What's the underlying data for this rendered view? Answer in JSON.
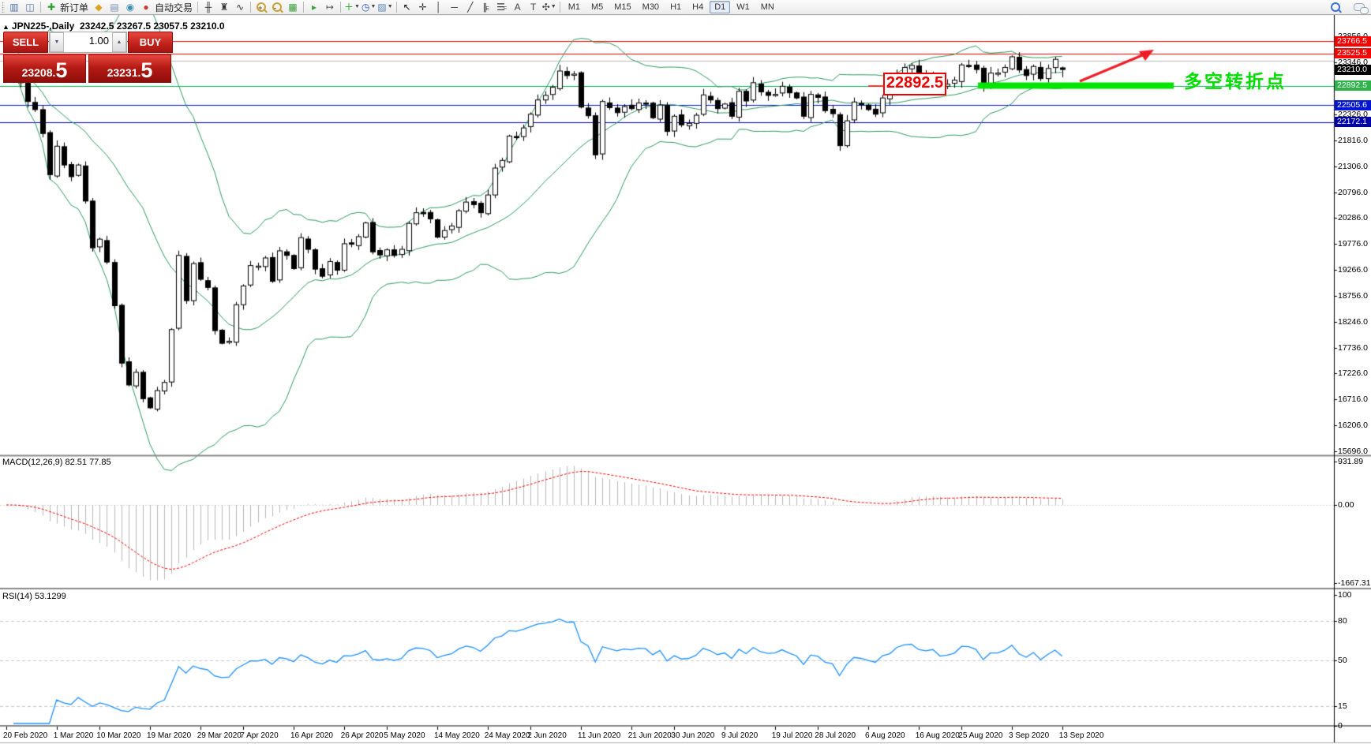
{
  "toolbar": {
    "icons_left": [
      {
        "name": "market-watch-icon",
        "glyph": "▥",
        "color": "#4f71a8"
      },
      {
        "name": "data-window-icon",
        "glyph": "◫",
        "color": "#4f71a8"
      },
      {
        "name": "separator"
      },
      {
        "name": "new-order-icon",
        "glyph": "✚",
        "color": "#2ca02c",
        "label": "新订单"
      },
      {
        "name": "expert-advisors-icon",
        "glyph": "◆",
        "color": "#d9a520"
      },
      {
        "name": "terminal-icon",
        "glyph": "▤",
        "color": "#7c8fb5"
      },
      {
        "name": "strategy-tester-icon",
        "glyph": "◉",
        "color": "#3a8fb5"
      },
      {
        "name": "autotrading-icon",
        "glyph": "●",
        "color": "#cc3b30",
        "label": "自动交易"
      },
      {
        "name": "separator"
      },
      {
        "name": "bar-chart-icon",
        "glyph": "╫",
        "color": "#333"
      },
      {
        "name": "candlestick-chart-icon",
        "glyph": "♜",
        "color": "#333"
      },
      {
        "name": "line-chart-icon",
        "glyph": "∿",
        "color": "#333"
      },
      {
        "name": "separator"
      },
      {
        "name": "zoom-in-icon",
        "special": "mag",
        "pm": "+"
      },
      {
        "name": "zoom-out-icon",
        "special": "mag",
        "pm": "-"
      },
      {
        "name": "tile-windows-icon",
        "glyph": "▦",
        "color": "#3ba03b"
      },
      {
        "name": "separator"
      },
      {
        "name": "auto-scroll-icon",
        "glyph": "▸",
        "color": "#3ba03b"
      },
      {
        "name": "chart-shift-icon",
        "glyph": "↦",
        "color": "#555"
      },
      {
        "name": "separator"
      },
      {
        "name": "indicators-icon",
        "glyph": "＋",
        "color": "#18a018",
        "dropdown": true
      },
      {
        "name": "periods-icon",
        "glyph": "◷",
        "color": "#2255cc",
        "dropdown": true
      },
      {
        "name": "templates-icon",
        "glyph": "▨",
        "color": "#5588bb",
        "dropdown": true
      },
      {
        "name": "separator"
      },
      {
        "name": "cursor-icon",
        "glyph": "↖",
        "color": "#111"
      },
      {
        "name": "crosshair-icon",
        "glyph": "✛",
        "color": "#333"
      },
      {
        "name": "vertical-line-icon",
        "glyph": "│",
        "color": "#333"
      },
      {
        "name": "horizontal-line-icon",
        "glyph": "─",
        "color": "#333"
      },
      {
        "name": "trendline-icon",
        "glyph": "╱",
        "color": "#333"
      },
      {
        "name": "equidistant-channel-icon",
        "glyph": "∥",
        "color": "#333",
        "sub": "E"
      },
      {
        "name": "fibonacci-icon",
        "glyph": "☰",
        "color": "#333",
        "sub": "F"
      },
      {
        "name": "text-icon",
        "glyph": "A",
        "color": "#444"
      },
      {
        "name": "text-label-icon",
        "glyph": "T",
        "color": "#444"
      },
      {
        "name": "arrows-icon",
        "glyph": "✣",
        "color": "#444",
        "dropdown": true
      },
      {
        "name": "separator"
      }
    ],
    "timeframes": [
      "M1",
      "M5",
      "M15",
      "M30",
      "H1",
      "H4",
      "D1",
      "W1",
      "MN"
    ],
    "active_timeframe": "D1",
    "icons_right": [
      {
        "name": "search-icon",
        "special": "mag-blue"
      },
      {
        "name": "chat-icon",
        "special": "chat"
      }
    ]
  },
  "chart": {
    "title_marker": "▲",
    "title": "JPN225-,Daily",
    "title_ohlc": "23242.5 23267.5 23057.5 23210.0",
    "one_click": {
      "sell_label": "SELL",
      "buy_label": "BUY",
      "volume": "1.00",
      "spin_down": "▼",
      "spin_up": "▲",
      "sell_price_main": "23208",
      "sell_price_frac": "5",
      "buy_price_main": "23231",
      "buy_price_frac": "5"
    },
    "y_ticks": [
      "23856.0",
      "23346.0",
      "22836.0",
      "22326.0",
      "21816.0",
      "21306.0",
      "20796.0",
      "20286.0",
      "19776.0",
      "19266.0",
      "18756.0",
      "18246.0",
      "17736.0",
      "17226.0",
      "16716.0",
      "16206.0",
      "15696.0"
    ],
    "price_labels": [
      {
        "text": "23766.5",
        "bg": "#f80000",
        "price": 23766.5
      },
      {
        "text": "23525.5",
        "bg": "#f80000",
        "price": 23525.5
      },
      {
        "text": "23210.0",
        "bg": "#000000",
        "price": 23210.0
      },
      {
        "text": "22892.5",
        "bg": "#2eb34a",
        "price": 22892.5
      },
      {
        "text": "22505.6",
        "bg": "#0014d2",
        "price": 22505.6
      },
      {
        "text": "22172.1",
        "bg": "#0000a8",
        "price": 22172.1
      }
    ],
    "levels": [
      {
        "price": 23766.5,
        "color": "#f80000"
      },
      {
        "price": 23525.5,
        "color": "#f80000"
      },
      {
        "price": 23375.0,
        "color": "#bcbcbc"
      },
      {
        "price": 22892.5,
        "color": "#00b050"
      },
      {
        "price": 22505.6,
        "color": "#0014d2"
      },
      {
        "price": 22172.1,
        "color": "#0000a8"
      }
    ],
    "annotations": {
      "price_box_text": "22892.5",
      "turning_point_text": "多空转折点"
    },
    "date_labels": [
      {
        "label": "20 Feb 2020",
        "i": 0
      },
      {
        "label": "1 Mar 2020",
        "i": 7
      },
      {
        "label": "10 Mar 2020",
        "i": 13
      },
      {
        "label": "19 Mar 2020",
        "i": 20
      },
      {
        "label": "29 Mar 2020",
        "i": 27
      },
      {
        "label": "7 Apr 2020",
        "i": 33
      },
      {
        "label": "16 Apr 2020",
        "i": 40
      },
      {
        "label": "26 Apr 2020",
        "i": 47
      },
      {
        "label": "5 May 2020",
        "i": 53
      },
      {
        "label": "14 May 2020",
        "i": 60
      },
      {
        "label": "24 May 2020",
        "i": 67
      },
      {
        "label": "2 Jun 2020",
        "i": 73
      },
      {
        "label": "11 Jun 2020",
        "i": 80
      },
      {
        "label": "21 Jun 2020",
        "i": 87
      },
      {
        "label": "30 Jun 2020",
        "i": 93
      },
      {
        "label": "9 Jul 2020",
        "i": 100
      },
      {
        "label": "19 Jul 2020",
        "i": 107
      },
      {
        "label": "28 Jul 2020",
        "i": 113
      },
      {
        "label": "6 Aug 2020",
        "i": 120
      },
      {
        "label": "16 Aug 2020",
        "i": 127
      },
      {
        "label": "25 Aug 2020",
        "i": 133
      },
      {
        "label": "3 Sep 2020",
        "i": 140
      },
      {
        "label": "13 Sep 2020",
        "i": 147
      }
    ]
  },
  "chart_data": {
    "type": "candlestick",
    "instrument": "JPN225-",
    "timeframe": "Daily",
    "y_range": [
      15696.0,
      23856.0
    ],
    "first_open": 23440,
    "last_candle": [
      23242.5,
      23267.5,
      23057.5,
      23210.0
    ],
    "closes": [
      23385,
      23290,
      22950,
      22580,
      22420,
      21950,
      21140,
      21700,
      21330,
      21100,
      21330,
      20620,
      19700,
      19870,
      19420,
      18560,
      17430,
      17000,
      17250,
      16730,
      16550,
      16890,
      17050,
      18090,
      19550,
      18660,
      19390,
      19080,
      18920,
      18070,
      17820,
      17860,
      18580,
      18950,
      19350,
      19340,
      19500,
      19040,
      19640,
      19550,
      19290,
      19900,
      19670,
      19280,
      19140,
      19430,
      19260,
      19780,
      19770,
      19920,
      20190,
      19620,
      19560,
      19660,
      19550,
      19670,
      20180,
      20390,
      20370,
      20270,
      19910,
      20040,
      20130,
      20430,
      20600,
      20550,
      20390,
      20740,
      21270,
      21420,
      21900,
      21880,
      22060,
      22330,
      22610,
      22700,
      22860,
      23180,
      23090,
      23120,
      22470,
      22300,
      21530,
      22580,
      22460,
      22360,
      22480,
      22440,
      22550,
      22530,
      22260,
      22510,
      21990,
      22290,
      22120,
      22150,
      22310,
      22710,
      22610,
      22440,
      22530,
      22290,
      22780,
      22590,
      22950,
      22770,
      22700,
      22720,
      22880,
      22750,
      22650,
      22290,
      22720,
      22660,
      22400,
      22340,
      21710,
      22200,
      22570,
      22520,
      22420,
      22330,
      22650,
      22750,
      23100,
      23250,
      23290,
      23100,
      23050,
      23110,
      22880,
      22920,
      23000,
      23300,
      23290,
      23210,
      22880,
      23140,
      23140,
      23250,
      23460,
      23200,
      23090,
      23270,
      23030,
      23230,
      23410,
      23210
    ],
    "bands_indicator": "Bollinger(20,2)",
    "band_color": "#2e9960"
  },
  "macd": {
    "label": "MACD(12,26,9)",
    "values_text": "82.51 77.85",
    "ticks": [
      {
        "text": "931.89",
        "v": 931.89
      },
      {
        "text": "0.00",
        "v": 0.0
      },
      {
        "text": "-1667.31",
        "v": -1667.31
      }
    ]
  },
  "rsi": {
    "label": "RSI(14)",
    "value_text": "53.1299",
    "ticks": [
      {
        "text": "100",
        "v": 100
      },
      {
        "text": "80",
        "v": 80
      },
      {
        "text": "50",
        "v": 50
      },
      {
        "text": "15",
        "v": 15
      },
      {
        "text": "0",
        "v": 0
      }
    ],
    "levels": [
      80,
      50,
      15
    ],
    "line_color": "#1e90ff"
  }
}
